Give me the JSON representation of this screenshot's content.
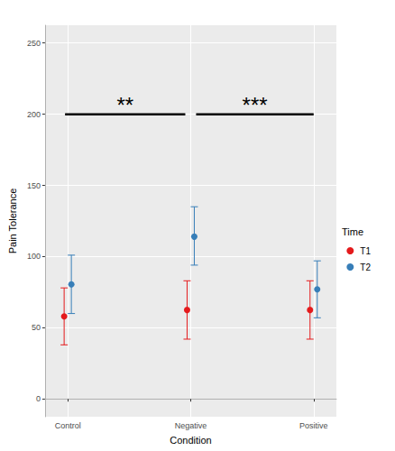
{
  "chart_data": {
    "type": "scatter",
    "x_label": "Condition",
    "y_label": "Pain Tolerance",
    "categories": [
      "Control",
      "Negative",
      "Positive"
    ],
    "legend_title": "Time",
    "legend": "right",
    "grid": true,
    "ylim": [
      -12.5,
      262.5
    ],
    "yticks": [
      0,
      50,
      100,
      150,
      200,
      250
    ],
    "series": [
      {
        "name": "T1",
        "color": "#E41A1C",
        "values": [
          58,
          62.5,
          62.5
        ],
        "error_low": [
          38,
          42,
          42
        ],
        "error_high": [
          78,
          83,
          83
        ]
      },
      {
        "name": "T2",
        "color": "#377EB8",
        "values": [
          80.5,
          114,
          77
        ],
        "error_low": [
          60,
          94,
          57
        ],
        "error_high": [
          101,
          135,
          97
        ]
      }
    ],
    "annotations": [
      {
        "text": "**",
        "from": "Control",
        "to": "Negative",
        "y": 200
      },
      {
        "text": "***",
        "from": "Negative",
        "to": "Positive",
        "y": 200
      }
    ]
  }
}
